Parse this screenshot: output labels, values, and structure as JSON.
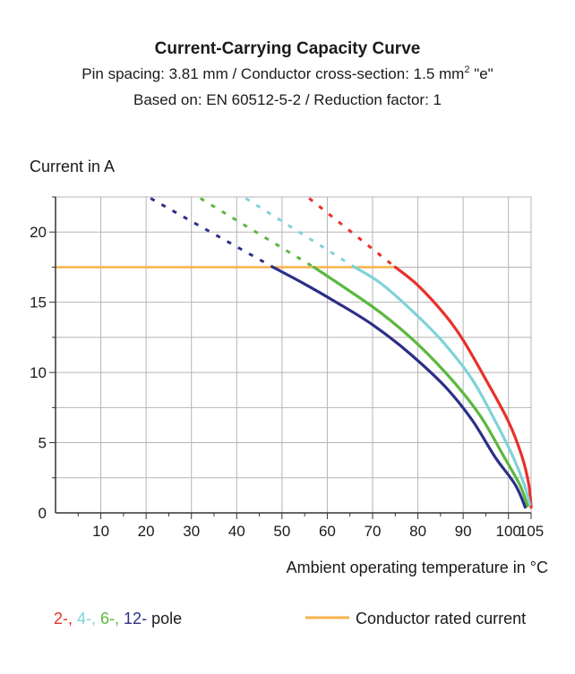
{
  "chart_data": {
    "type": "line",
    "title": "Current-Carrying Capacity Curve",
    "subtitle_line1_before": "Pin spacing: 3.81 mm / Conductor cross-section: 1.5 mm",
    "subtitle_line1_sup": "2",
    "subtitle_line1_after": " \"e\"",
    "subtitle_line2": "Based on: EN 60512-5-2 / Reduction factor: 1",
    "ylabel": "Current in A",
    "xlabel": "Ambient operating temperature in °C",
    "xlim": [
      0,
      105
    ],
    "ylim": [
      0,
      22.5
    ],
    "x_ticks": [
      10,
      20,
      30,
      40,
      50,
      60,
      70,
      80,
      90,
      100,
      105
    ],
    "y_ticks": [
      0,
      5,
      10,
      15,
      20
    ],
    "grid": true,
    "colors": {
      "2-pole": "#e8312a",
      "4-pole": "#7ed3d8",
      "6-pole": "#5cb83f",
      "12-pole": "#2c2f87",
      "rated": "#f7b24a",
      "axis": "#333333",
      "grid": "#b5b5b5"
    },
    "rated_current": {
      "value": 17.5,
      "x_range": [
        0,
        75
      ]
    },
    "series": [
      {
        "key": "2-pole",
        "solid": [
          [
            75,
            17.5
          ],
          [
            80,
            16.2
          ],
          [
            86,
            14.1
          ],
          [
            90,
            12.3
          ],
          [
            95,
            9.5
          ],
          [
            100,
            6.5
          ],
          [
            103,
            4.0
          ],
          [
            104.5,
            2.0
          ],
          [
            105,
            0.4
          ]
        ],
        "dashed": [
          [
            56,
            22.4
          ],
          [
            75,
            17.5
          ]
        ]
      },
      {
        "key": "4-pole",
        "solid": [
          [
            66,
            17.5
          ],
          [
            72,
            16.3
          ],
          [
            80,
            14.0
          ],
          [
            86,
            12.0
          ],
          [
            92,
            9.5
          ],
          [
            97,
            6.6
          ],
          [
            101,
            4.0
          ],
          [
            103.5,
            2.0
          ],
          [
            104.7,
            0.6
          ]
        ],
        "dashed": [
          [
            42,
            22.4
          ],
          [
            66,
            17.5
          ]
        ]
      },
      {
        "key": "6-pole",
        "solid": [
          [
            57,
            17.5
          ],
          [
            64,
            16.0
          ],
          [
            72,
            14.2
          ],
          [
            80,
            12.0
          ],
          [
            88,
            9.3
          ],
          [
            94,
            6.8
          ],
          [
            99,
            4.0
          ],
          [
            102.5,
            2.0
          ],
          [
            104.2,
            0.5
          ]
        ],
        "dashed": [
          [
            32,
            22.4
          ],
          [
            57,
            17.5
          ]
        ]
      },
      {
        "key": "12-pole",
        "solid": [
          [
            48,
            17.5
          ],
          [
            55,
            16.3
          ],
          [
            62,
            15.0
          ],
          [
            70,
            13.4
          ],
          [
            78,
            11.4
          ],
          [
            86,
            9.0
          ],
          [
            92,
            6.6
          ],
          [
            97,
            4.0
          ],
          [
            101.5,
            2.0
          ],
          [
            103.7,
            0.4
          ]
        ],
        "dashed": [
          [
            21,
            22.4
          ],
          [
            48,
            17.5
          ]
        ]
      }
    ],
    "legend": {
      "pole_labels": [
        {
          "text": "2-,",
          "key": "2-pole"
        },
        {
          "text": " 4-,",
          "key": "4-pole"
        },
        {
          "text": " 6-,",
          "key": "6-pole"
        },
        {
          "text": " 12-",
          "key": "12-pole"
        }
      ],
      "pole_suffix": " pole",
      "rated_label": "Conductor rated current"
    }
  }
}
